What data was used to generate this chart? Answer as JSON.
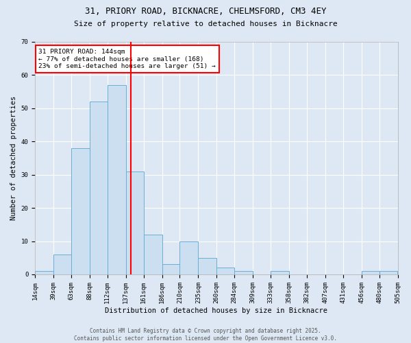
{
  "title1": "31, PRIORY ROAD, BICKNACRE, CHELMSFORD, CM3 4EY",
  "title2": "Size of property relative to detached houses in Bicknacre",
  "xlabel": "Distribution of detached houses by size in Bicknacre",
  "ylabel": "Number of detached properties",
  "bin_edges": [
    14,
    39,
    63,
    88,
    112,
    137,
    161,
    186,
    210,
    235,
    260,
    284,
    309,
    333,
    358,
    382,
    407,
    431,
    456,
    480,
    505
  ],
  "bin_counts": [
    1,
    6,
    38,
    52,
    57,
    31,
    12,
    3,
    10,
    5,
    2,
    1,
    0,
    1,
    0,
    0,
    0,
    0,
    1,
    1
  ],
  "bar_color": "#ccdff0",
  "bar_edge_color": "#6aafd6",
  "vline_x": 144,
  "vline_color": "red",
  "annotation_text": "31 PRIORY ROAD: 144sqm\n← 77% of detached houses are smaller (168)\n23% of semi-detached houses are larger (51) →",
  "annotation_box_color": "white",
  "annotation_box_edgecolor": "red",
  "ylim": [
    0,
    70
  ],
  "yticks": [
    0,
    10,
    20,
    30,
    40,
    50,
    60,
    70
  ],
  "background_color": "#dde8f4",
  "footer_text": "Contains HM Land Registry data © Crown copyright and database right 2025.\nContains public sector information licensed under the Open Government Licence v3.0.",
  "grid_color": "white",
  "title_fontsize": 9,
  "subtitle_fontsize": 8,
  "axis_label_fontsize": 7.5,
  "tick_fontsize": 6.5,
  "annotation_fontsize": 6.8,
  "footer_fontsize": 5.5
}
